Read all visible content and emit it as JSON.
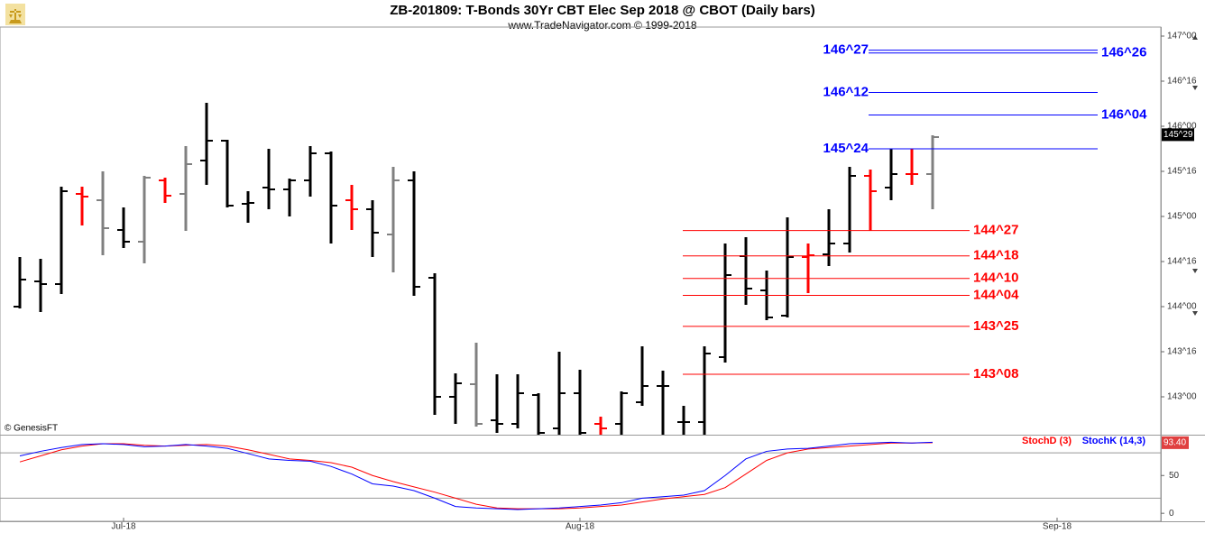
{
  "chart_data": [
    {
      "type": "ohlc",
      "title": "ZB-201809:  T-Bonds 30Yr CBT Elec Sep 2018 @ CBOT  (Daily bars)",
      "subtitle": "www.TradeNavigator.com © 1999-2018",
      "credit": "© GenesisFT",
      "ylim": [
        142.58,
        147.1
      ],
      "yticks": [
        {
          "value": 143,
          "label": "143^00"
        },
        {
          "value": 143.5,
          "label": "143^16"
        },
        {
          "value": 144,
          "label": "144^00"
        },
        {
          "value": 144.5,
          "label": "144^16"
        },
        {
          "value": 145,
          "label": "145^00"
        },
        {
          "value": 145.5,
          "label": "145^16"
        },
        {
          "value": 146,
          "label": "146^00"
        },
        {
          "value": 146.5,
          "label": "146^16"
        },
        {
          "value": 147,
          "label": "147^00"
        }
      ],
      "xticks": [
        {
          "value": 5,
          "label": "Jul-18"
        },
        {
          "value": 27,
          "label": "Aug-18"
        },
        {
          "value": 50,
          "label": "Sep-18"
        }
      ],
      "last_price": {
        "value": 145.90625,
        "label": "145^29"
      },
      "open": [
        144.0,
        144.28,
        144.25,
        145.25,
        145.18,
        144.85,
        144.72,
        145.4,
        145.25,
        145.62,
        145.84,
        145.14,
        145.32,
        145.3,
        145.4,
        145.7,
        145.18,
        145.08,
        144.8,
        145.4,
        144.32,
        143.0,
        143.14,
        142.74,
        142.7,
        143.02,
        142.65,
        143.04,
        142.7,
        142.7,
        142.94,
        143.12,
        142.72,
        142.72,
        143.44,
        144.56,
        144.18,
        143.9,
        144.55,
        144.58,
        144.7,
        145.45,
        145.32,
        145.47,
        145.47
      ],
      "high": [
        144.55,
        144.53,
        145.33,
        145.33,
        145.5,
        145.1,
        145.45,
        145.43,
        145.78,
        146.26,
        145.85,
        145.28,
        145.75,
        145.42,
        145.78,
        145.72,
        145.35,
        145.18,
        145.55,
        145.5,
        144.37,
        143.26,
        143.6,
        143.25,
        143.25,
        143.04,
        143.5,
        143.3,
        142.78,
        143.06,
        143.56,
        143.29,
        142.9,
        143.56,
        144.7,
        144.77,
        144.4,
        144.99,
        144.7,
        145.08,
        145.55,
        145.52,
        145.75,
        145.75,
        145.9
      ],
      "low": [
        143.98,
        143.94,
        144.14,
        144.9,
        144.57,
        144.65,
        144.48,
        145.15,
        144.84,
        145.35,
        145.1,
        144.93,
        145.08,
        145.0,
        145.22,
        144.7,
        144.85,
        144.55,
        144.38,
        144.12,
        142.8,
        142.7,
        142.67,
        142.6,
        142.65,
        142.58,
        142.58,
        142.58,
        142.58,
        142.58,
        142.9,
        142.58,
        142.58,
        142.58,
        143.38,
        144.02,
        143.85,
        143.88,
        144.15,
        144.45,
        144.6,
        144.84,
        145.18,
        145.35,
        145.08
      ],
      "close": [
        144.3,
        144.25,
        145.28,
        145.22,
        144.87,
        144.72,
        145.43,
        145.23,
        145.58,
        145.84,
        145.12,
        145.15,
        145.3,
        145.4,
        145.7,
        145.12,
        145.08,
        144.82,
        145.4,
        144.22,
        143.0,
        143.15,
        142.7,
        142.7,
        143.04,
        142.6,
        143.04,
        142.6,
        142.65,
        143.04,
        143.12,
        143.12,
        142.72,
        143.48,
        144.35,
        144.2,
        143.88,
        144.55,
        144.57,
        144.7,
        145.45,
        145.28,
        145.47,
        145.47,
        145.88
      ],
      "bar_colors": [
        "#000000",
        "#000000",
        "#000000",
        "#ff0000",
        "#808080",
        "#000000",
        "#808080",
        "#ff0000",
        "#808080",
        "#000000",
        "#000000",
        "#000000",
        "#000000",
        "#000000",
        "#000000",
        "#000000",
        "#ff0000",
        "#000000",
        "#808080",
        "#000000",
        "#000000",
        "#000000",
        "#808080",
        "#000000",
        "#000000",
        "#000000",
        "#000000",
        "#000000",
        "#ff0000",
        "#000000",
        "#000000",
        "#000000",
        "#000000",
        "#000000",
        "#000000",
        "#000000",
        "#000000",
        "#000000",
        "#ff0000",
        "#000000",
        "#000000",
        "#ff0000",
        "#000000",
        "#ff0000",
        "#808080"
      ],
      "levels": [
        {
          "value": 146.84375,
          "label": "146^27",
          "color": "#0000ff"
        },
        {
          "value": 146.8125,
          "label": "146^26",
          "color": "#0000ff"
        },
        {
          "value": 146.375,
          "label": "146^12",
          "color": "#0000ff"
        },
        {
          "value": 146.125,
          "label": "146^04",
          "color": "#0000ff"
        },
        {
          "value": 145.75,
          "label": "145^24",
          "color": "#0000ff"
        },
        {
          "value": 144.84375,
          "label": "144^27",
          "color": "#ff0000"
        },
        {
          "value": 144.5625,
          "label": "144^18",
          "color": "#ff0000"
        },
        {
          "value": 144.3125,
          "label": "144^10",
          "color": "#ff0000"
        },
        {
          "value": 144.125,
          "label": "144^04",
          "color": "#ff0000"
        },
        {
          "value": 143.78125,
          "label": "143^25",
          "color": "#ff0000"
        },
        {
          "value": 143.25,
          "label": "143^08",
          "color": "#ff0000"
        }
      ]
    },
    {
      "type": "line",
      "ylim": [
        -1,
        104
      ],
      "yticks": [
        0,
        50
      ],
      "grid_levels": [
        20,
        80
      ],
      "series": [
        {
          "name": "StochD (3)",
          "color": "#ff0000",
          "values": [
            68,
            76,
            84,
            89,
            92,
            92,
            90,
            89,
            90,
            91,
            89,
            84,
            78,
            72,
            70,
            67,
            61,
            50,
            42,
            35,
            28,
            20,
            12,
            7,
            6,
            6,
            6,
            7,
            9,
            11,
            15,
            19,
            22,
            25,
            34,
            52,
            70,
            80,
            85,
            87,
            89,
            91,
            93,
            93,
            93.4
          ],
          "value_labels": [
            null,
            null,
            null,
            null,
            null,
            null,
            null,
            null,
            null,
            null,
            null,
            null,
            null,
            null,
            null,
            null,
            null,
            null,
            null,
            null,
            null,
            null,
            null,
            null,
            null,
            null,
            null,
            null,
            null,
            null,
            null,
            null,
            null,
            null,
            null,
            null,
            null,
            null,
            null,
            null,
            null,
            null,
            null,
            null,
            "93.40"
          ]
        },
        {
          "name": "StochK (14,3)",
          "color": "#0000ff",
          "values": [
            76,
            82,
            87,
            91,
            92,
            91,
            88,
            89,
            91,
            89,
            86,
            79,
            72,
            70,
            69,
            62,
            52,
            39,
            36,
            30,
            20,
            9,
            7,
            6,
            5,
            6,
            7,
            9,
            11,
            14,
            20,
            22,
            24,
            30,
            50,
            72,
            82,
            85,
            86,
            89,
            92,
            93,
            94,
            93,
            94
          ]
        }
      ]
    }
  ]
}
